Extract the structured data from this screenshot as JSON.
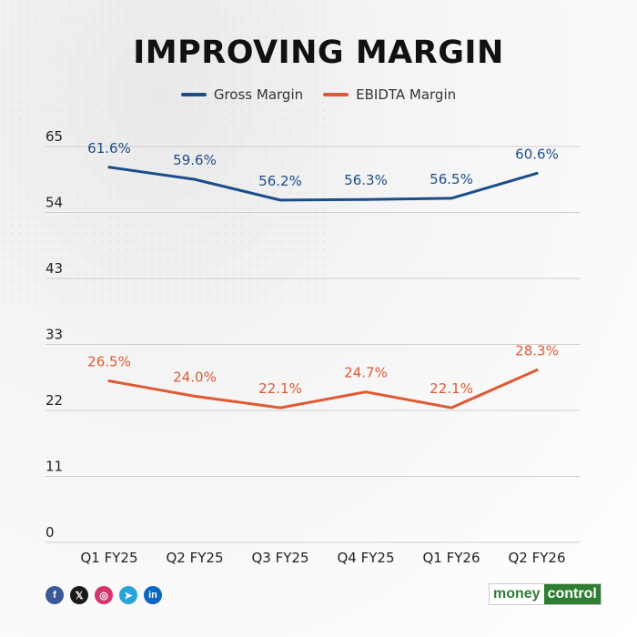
{
  "title": "IMPROVING MARGIN",
  "colors": {
    "gross": "#1b4d89",
    "ebitda": "#e05a33",
    "grid": "#cfcfcf",
    "axis_text": "#222222"
  },
  "chart_data": {
    "type": "line",
    "title": "IMPROVING MARGIN",
    "xlabel": "",
    "ylabel": "",
    "categories": [
      "Q1 FY25",
      "Q2 FY25",
      "Q3 FY25",
      "Q4 FY25",
      "Q1 FY26",
      "Q2 FY26"
    ],
    "yticks": [
      "65",
      "54",
      "43",
      "33",
      "22",
      "11",
      "0"
    ],
    "ylim": [
      0,
      65
    ],
    "grid": true,
    "legend": "top-center",
    "series": [
      {
        "name": "Gross Margin",
        "values": [
          61.6,
          59.6,
          56.2,
          56.3,
          56.5,
          60.6
        ],
        "labels": [
          "61.6%",
          "59.6%",
          "56.2%",
          "56.3%",
          "56.5%",
          "60.6%"
        ]
      },
      {
        "name": "EBIDTA Margin",
        "values": [
          26.5,
          24.0,
          22.1,
          24.7,
          22.1,
          28.3
        ],
        "labels": [
          "26.5%",
          "24.0%",
          "22.1%",
          "24.7%",
          "22.1%",
          "28.3%"
        ]
      }
    ]
  },
  "footer": {
    "social": [
      {
        "name": "facebook-icon",
        "glyph": "f",
        "color": "#3b5998"
      },
      {
        "name": "x-icon",
        "glyph": "𝕏",
        "color": "#1a1a1a"
      },
      {
        "name": "instagram-icon",
        "glyph": "◎",
        "color": "#d6336c"
      },
      {
        "name": "telegram-icon",
        "glyph": "➤",
        "color": "#2aa3d8"
      },
      {
        "name": "linkedin-icon",
        "glyph": "in",
        "color": "#0a66c2"
      }
    ],
    "brand_part1": "money",
    "brand_part2": "control"
  }
}
